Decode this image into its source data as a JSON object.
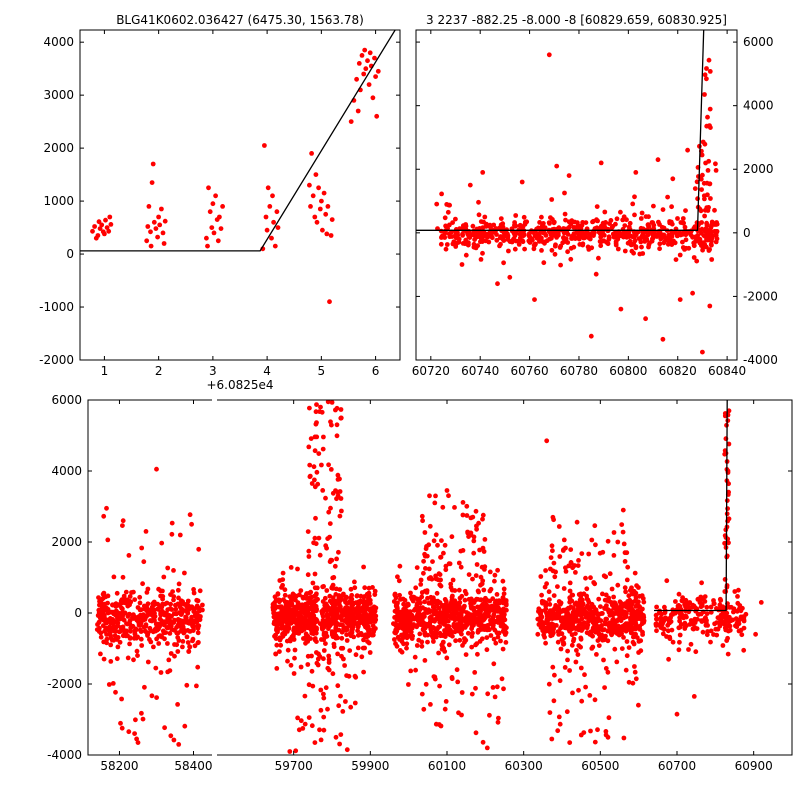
{
  "figure": {
    "background": "#ffffff",
    "marker_color": "#ff0000",
    "line_color": "#000000",
    "random_seed": 20240607
  },
  "chart_data": [
    {
      "id": "model-zoom",
      "type": "scatter",
      "title": "BLG41K0602.036427 (6475.30, 1563.78)",
      "x_offset_label": "+6.0825e4",
      "ylim": [
        -2000,
        4230
      ],
      "yticks": [
        -2000,
        -1000,
        0,
        1000,
        2000,
        3000,
        4000
      ],
      "segments": [
        {
          "xlim": [
            0.55,
            6.45
          ],
          "xticks": [
            1,
            2,
            3,
            4,
            5,
            6
          ],
          "points": [
            [
              0.78,
              430
            ],
            [
              0.82,
              520
            ],
            [
              0.85,
              300
            ],
            [
              0.88,
              350
            ],
            [
              0.9,
              610
            ],
            [
              0.92,
              480
            ],
            [
              0.95,
              550
            ],
            [
              0.98,
              420
            ],
            [
              1.0,
              380
            ],
            [
              1.02,
              640
            ],
            [
              1.05,
              500
            ],
            [
              1.08,
              430
            ],
            [
              1.1,
              700
            ],
            [
              1.12,
              560
            ],
            [
              1.78,
              250
            ],
            [
              1.8,
              520
            ],
            [
              1.82,
              900
            ],
            [
              1.85,
              420
            ],
            [
              1.86,
              150
            ],
            [
              1.88,
              1350
            ],
            [
              1.9,
              1700
            ],
            [
              1.92,
              600
            ],
            [
              1.95,
              480
            ],
            [
              1.98,
              320
            ],
            [
              2.0,
              700
            ],
            [
              2.02,
              550
            ],
            [
              2.05,
              850
            ],
            [
              2.08,
              400
            ],
            [
              2.1,
              200
            ],
            [
              2.12,
              620
            ],
            [
              2.88,
              300
            ],
            [
              2.9,
              150
            ],
            [
              2.92,
              1250
            ],
            [
              2.95,
              800
            ],
            [
              2.98,
              500
            ],
            [
              3.0,
              950
            ],
            [
              3.02,
              400
            ],
            [
              3.05,
              1100
            ],
            [
              3.08,
              650
            ],
            [
              3.1,
              250
            ],
            [
              3.12,
              700
            ],
            [
              3.15,
              480
            ],
            [
              3.18,
              900
            ],
            [
              3.92,
              100
            ],
            [
              3.95,
              2050
            ],
            [
              3.98,
              700
            ],
            [
              4.0,
              450
            ],
            [
              4.02,
              1250
            ],
            [
              4.05,
              900
            ],
            [
              4.08,
              300
            ],
            [
              4.1,
              1100
            ],
            [
              4.12,
              600
            ],
            [
              4.15,
              150
            ],
            [
              4.18,
              800
            ],
            [
              4.2,
              500
            ],
            [
              4.78,
              1300
            ],
            [
              4.8,
              900
            ],
            [
              4.82,
              1900
            ],
            [
              4.85,
              1100
            ],
            [
              4.88,
              700
            ],
            [
              4.9,
              1500
            ],
            [
              4.92,
              600
            ],
            [
              4.95,
              1250
            ],
            [
              4.98,
              850
            ],
            [
              5.0,
              1000
            ],
            [
              5.02,
              450
            ],
            [
              5.05,
              1150
            ],
            [
              5.08,
              750
            ],
            [
              5.1,
              380
            ],
            [
              5.12,
              900
            ],
            [
              5.15,
              -900
            ],
            [
              5.18,
              350
            ],
            [
              5.2,
              650
            ],
            [
              5.55,
              2500
            ],
            [
              5.6,
              2900
            ],
            [
              5.65,
              3300
            ],
            [
              5.68,
              2700
            ],
            [
              5.7,
              3600
            ],
            [
              5.72,
              3100
            ],
            [
              5.75,
              3750
            ],
            [
              5.78,
              3400
            ],
            [
              5.8,
              3850
            ],
            [
              5.82,
              3500
            ],
            [
              5.85,
              3650
            ],
            [
              5.88,
              3200
            ],
            [
              5.9,
              3800
            ],
            [
              5.92,
              3550
            ],
            [
              5.95,
              2950
            ],
            [
              5.98,
              3700
            ],
            [
              6.0,
              3350
            ],
            [
              6.02,
              2600
            ],
            [
              6.05,
              3450
            ]
          ],
          "line": [
            [
              0.55,
              60
            ],
            [
              3.87,
              60
            ],
            [
              6.45,
              4380
            ]
          ]
        }
      ]
    },
    {
      "id": "fit-window",
      "type": "scatter",
      "title": "3 2237 -882.25 -8.000 -8 [60829.659, 60830.925]",
      "ylim": [
        -4000,
        6380
      ],
      "yticks": [
        -4000,
        -2000,
        0,
        2000,
        4000,
        6000
      ],
      "segments": [
        {
          "xlim": [
            60714,
            60844
          ],
          "xticks": [
            60720,
            60740,
            60760,
            60780,
            60800,
            60820,
            60840
          ],
          "clusters": [
            {
              "x0": 60724,
              "x1": 60836,
              "n": 520,
              "dist": "normal",
              "mean": -30,
              "sd": 220,
              "ymin": -700,
              "ymax": 800
            },
            {
              "x0": 60726,
              "x1": 60834,
              "n": 140,
              "dist": "normal",
              "mean": 0,
              "sd": 550,
              "ymin": -1800,
              "ymax": 1800
            },
            {
              "x0": 60827,
              "x1": 60836,
              "n": 45,
              "dist": "uniform",
              "ymin": -400,
              "ymax": 2800
            },
            {
              "x0": 60829,
              "x1": 60835,
              "n": 12,
              "dist": "uniform",
              "ymin": 2800,
              "ymax": 5600
            },
            {
              "x0": 60722,
              "x1": 60728,
              "n": 8,
              "dist": "uniform",
              "ymin": -1300,
              "ymax": 1500
            }
          ],
          "outliers": [
            [
              60768,
              5600
            ],
            [
              60736,
              1500
            ],
            [
              60741,
              1900
            ],
            [
              60747,
              -1600
            ],
            [
              60752,
              -1400
            ],
            [
              60757,
              1600
            ],
            [
              60762,
              -2100
            ],
            [
              60771,
              2100
            ],
            [
              60776,
              1800
            ],
            [
              60785,
              -3250
            ],
            [
              60789,
              2200
            ],
            [
              60797,
              -2400
            ],
            [
              60803,
              1900
            ],
            [
              60807,
              -2700
            ],
            [
              60812,
              2300
            ],
            [
              60814,
              -3350
            ],
            [
              60818,
              1700
            ],
            [
              60821,
              -2100
            ],
            [
              60824,
              2600
            ],
            [
              60826,
              -1900
            ],
            [
              60830,
              -3750
            ],
            [
              60833,
              -2300
            ]
          ],
          "line": [
            [
              60714,
              80
            ],
            [
              60828,
              80
            ],
            [
              60830.5,
              6380
            ]
          ]
        }
      ]
    },
    {
      "id": "full-lightcurve",
      "type": "scatter",
      "ylim": [
        -4000,
        6000
      ],
      "yticks": [
        -4000,
        -2000,
        0,
        2000,
        4000,
        6000
      ],
      "segments": [
        {
          "xlim": [
            58115,
            58450
          ],
          "xticks": [
            58200,
            58400
          ],
          "clusters": [
            {
              "x0": 58140,
              "x1": 58425,
              "n": 380,
              "dist": "normal",
              "mean": -200,
              "sd": 330,
              "ymin": -1100,
              "ymax": 700
            },
            {
              "x0": 58145,
              "x1": 58420,
              "n": 110,
              "dist": "normal",
              "mean": -300,
              "sd": 750,
              "ymin": -2400,
              "ymax": 1400
            },
            {
              "x0": 58160,
              "x1": 58410,
              "n": 22,
              "dist": "uniform",
              "ymin": -3600,
              "ymax": -1600
            },
            {
              "x0": 58155,
              "x1": 58415,
              "n": 14,
              "dist": "uniform",
              "ymin": 800,
              "ymax": 2900
            }
          ],
          "outliers": [
            [
              58300,
              4050
            ],
            [
              58165,
              2950
            ],
            [
              58210,
              2600
            ],
            [
              58395,
              2500
            ],
            [
              58360,
              -3700
            ],
            [
              58250,
              -3650
            ]
          ]
        },
        {
          "xlim": [
            59500,
            61000
          ],
          "xticks": [
            59700,
            59900,
            60100,
            60300,
            60500,
            60700,
            60900
          ],
          "clusters": [
            {
              "x0": 59645,
              "x1": 59760,
              "n": 300,
              "dist": "normal",
              "mean": -100,
              "sd": 330,
              "ymin": -1100,
              "ymax": 800
            },
            {
              "x0": 59775,
              "x1": 59915,
              "n": 300,
              "dist": "normal",
              "mean": -100,
              "sd": 330,
              "ymin": -1100,
              "ymax": 800
            },
            {
              "x0": 59650,
              "x1": 59910,
              "n": 140,
              "dist": "normal",
              "mean": -200,
              "sd": 800,
              "ymin": -2700,
              "ymax": 1600
            },
            {
              "x0": 59735,
              "x1": 59825,
              "n": 120,
              "dist": "uniform",
              "ymin": -1500,
              "ymax": 5950
            },
            {
              "x0": 59700,
              "x1": 59860,
              "n": 35,
              "dist": "uniform",
              "ymin": -3900,
              "ymax": -1500
            },
            {
              "x0": 59960,
              "x1": 60255,
              "n": 560,
              "dist": "normal",
              "mean": -150,
              "sd": 330,
              "ymin": -1100,
              "ymax": 800
            },
            {
              "x0": 59965,
              "x1": 60250,
              "n": 150,
              "dist": "normal",
              "mean": -150,
              "sd": 800,
              "ymin": -2600,
              "ymax": 1700
            },
            {
              "x0": 60030,
              "x1": 60200,
              "n": 70,
              "dist": "uniform",
              "ymin": 800,
              "ymax": 3400
            },
            {
              "x0": 59990,
              "x1": 60240,
              "n": 30,
              "dist": "uniform",
              "ymin": -3800,
              "ymax": -1500
            },
            {
              "x0": 60335,
              "x1": 60615,
              "n": 480,
              "dist": "normal",
              "mean": -150,
              "sd": 330,
              "ymin": -1100,
              "ymax": 800
            },
            {
              "x0": 60340,
              "x1": 60610,
              "n": 130,
              "dist": "normal",
              "mean": -150,
              "sd": 800,
              "ymin": -2500,
              "ymax": 1600
            },
            {
              "x0": 60360,
              "x1": 60580,
              "n": 45,
              "dist": "uniform",
              "ymin": 800,
              "ymax": 2700
            },
            {
              "x0": 60350,
              "x1": 60600,
              "n": 28,
              "dist": "uniform",
              "ymin": -3700,
              "ymax": -1500
            },
            {
              "x0": 60645,
              "x1": 60880,
              "n": 200,
              "dist": "normal",
              "mean": -100,
              "sd": 300,
              "ymin": -900,
              "ymax": 700
            },
            {
              "x0": 60650,
              "x1": 60875,
              "n": 45,
              "dist": "normal",
              "mean": -200,
              "sd": 700,
              "ymin": -2100,
              "ymax": 1300
            },
            {
              "x0": 60824,
              "x1": 60836,
              "n": 40,
              "dist": "uniform",
              "ymin": -300,
              "ymax": 5850
            }
          ],
          "outliers": [
            [
              60360,
              4850
            ],
            [
              60560,
              2900
            ],
            [
              59690,
              -3900
            ],
            [
              59840,
              -3850
            ],
            [
              60100,
              3450
            ],
            [
              60070,
              3300
            ],
            [
              59790,
              5950
            ],
            [
              59770,
              5800
            ],
            [
              60700,
              -2850
            ],
            [
              60745,
              -2350
            ],
            [
              60205,
              -3800
            ],
            [
              60420,
              -3650
            ],
            [
              60520,
              -3500
            ],
            [
              60905,
              -600
            ],
            [
              60920,
              300
            ]
          ],
          "line": [
            [
              60640,
              70
            ],
            [
              60828,
              70
            ],
            [
              60831,
              6000
            ]
          ]
        }
      ]
    }
  ]
}
